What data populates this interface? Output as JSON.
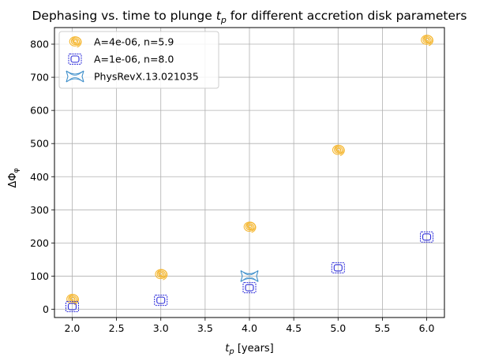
{
  "chart_data": {
    "type": "scatter",
    "title_prefix": "Dephasing vs. time to plunge ",
    "title_var": "t",
    "title_sub": "p",
    "title_suffix": " for different accretion disk parameters",
    "xlabel_var": "t",
    "xlabel_sub": "p",
    "xlabel_suffix": " [years]",
    "ylabel_main": "ΔΦ",
    "ylabel_sub": "φ",
    "xlim": [
      1.8,
      6.2
    ],
    "ylim": [
      -25,
      850
    ],
    "xticks": [
      2.0,
      2.5,
      3.0,
      3.5,
      4.0,
      4.5,
      5.0,
      5.5,
      6.0
    ],
    "xtick_labels": [
      "2.0",
      "2.5",
      "3.0",
      "3.5",
      "4.0",
      "4.5",
      "5.0",
      "5.5",
      "6.0"
    ],
    "yticks": [
      0,
      100,
      200,
      300,
      400,
      500,
      600,
      700,
      800
    ],
    "ytick_labels": [
      "0",
      "100",
      "200",
      "300",
      "400",
      "500",
      "600",
      "700",
      "800"
    ],
    "grid": true,
    "legend_position": "top-left",
    "series": [
      {
        "name": "A=4e-06, n=5.9",
        "color": "#f5b731",
        "marker": "spiral",
        "x": [
          2.0,
          3.0,
          4.0,
          5.0,
          6.0
        ],
        "y": [
          30,
          105,
          248,
          480,
          812
        ]
      },
      {
        "name": "A=1e-06, n=8.0",
        "color": "#2b2bd9",
        "marker": "square",
        "x": [
          2.0,
          3.0,
          4.0,
          5.0,
          6.0
        ],
        "y": [
          8,
          27,
          65,
          125,
          218
        ]
      },
      {
        "name": "PhysRevX.13.021035",
        "color": "#3f8fca",
        "marker": "bowtie",
        "x": [
          4.0
        ],
        "y": [
          100
        ]
      }
    ]
  }
}
